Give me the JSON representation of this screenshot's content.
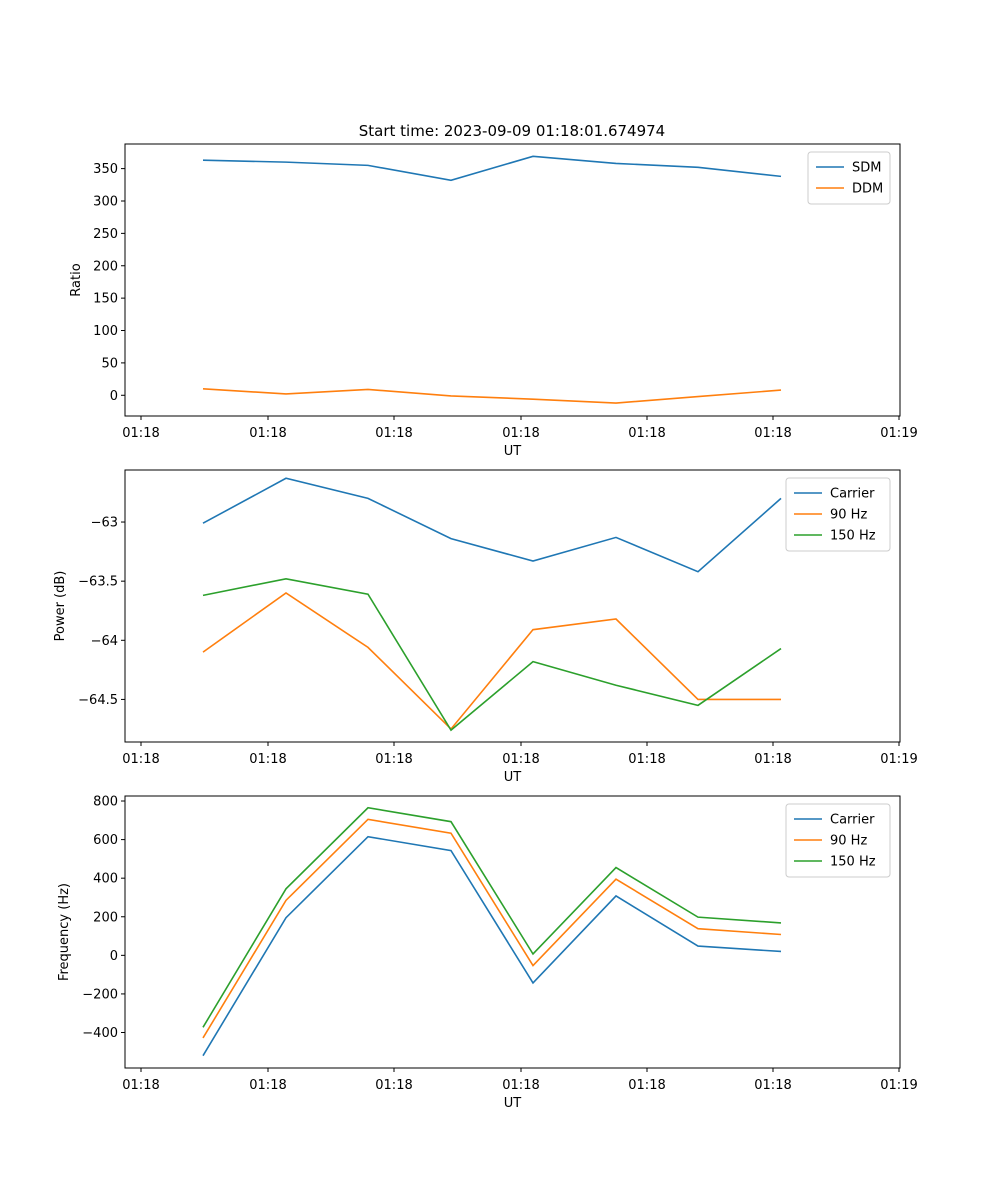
{
  "title": "Start time: 2023-09-09 01:18:01.674974",
  "colors": {
    "blue": "#1f77b4",
    "orange": "#ff7f0e",
    "green": "#2ca02c"
  },
  "chart_data": [
    {
      "type": "line",
      "xlabel": "UT",
      "ylabel": "Ratio",
      "xticks": [
        "01:18",
        "01:18",
        "01:18",
        "01:18",
        "01:18",
        "01:18",
        "01:19"
      ],
      "yticks": [
        0,
        50,
        100,
        150,
        200,
        250,
        300,
        350
      ],
      "ylim": [
        -32,
        388
      ],
      "x": [
        1,
        2,
        3,
        4,
        5,
        6,
        7,
        8
      ],
      "series": [
        {
          "name": "SDM",
          "color": "#1f77b4",
          "values": [
            363,
            360,
            355,
            332,
            369,
            358,
            352,
            338
          ]
        },
        {
          "name": "DDM",
          "color": "#ff7f0e",
          "values": [
            10,
            2,
            9,
            -1,
            -6,
            -12,
            -2,
            8
          ]
        }
      ]
    },
    {
      "type": "line",
      "xlabel": "UT",
      "ylabel": "Power (dB)",
      "xticks": [
        "01:18",
        "01:18",
        "01:18",
        "01:18",
        "01:18",
        "01:18",
        "01:19"
      ],
      "yticks": [
        -63.0,
        -63.5,
        -64.0,
        -64.5
      ],
      "ylim": [
        -64.86,
        -62.56
      ],
      "x": [
        1,
        2,
        3,
        4,
        5,
        6,
        7,
        8
      ],
      "series": [
        {
          "name": "Carrier",
          "color": "#1f77b4",
          "values": [
            -63.01,
            -62.63,
            -62.8,
            -63.14,
            -63.33,
            -63.13,
            -63.42,
            -62.8
          ]
        },
        {
          "name": "90 Hz",
          "color": "#ff7f0e",
          "values": [
            -64.1,
            -63.6,
            -64.06,
            -64.75,
            -63.91,
            -63.82,
            -64.5,
            -64.5
          ]
        },
        {
          "name": "150 Hz",
          "color": "#2ca02c",
          "values": [
            -63.62,
            -63.48,
            -63.61,
            -64.76,
            -64.18,
            -64.38,
            -64.55,
            -64.07
          ]
        }
      ]
    },
    {
      "type": "line",
      "xlabel": "UT",
      "ylabel": "Frequency (Hz)",
      "xticks": [
        "01:18",
        "01:18",
        "01:18",
        "01:18",
        "01:18",
        "01:18",
        "01:19"
      ],
      "yticks": [
        -400,
        -200,
        0,
        200,
        400,
        600,
        800
      ],
      "ylim": [
        -584,
        826
      ],
      "x": [
        1,
        2,
        3,
        4,
        5,
        6,
        7,
        8
      ],
      "series": [
        {
          "name": "Carrier",
          "color": "#1f77b4",
          "values": [
            -520,
            195,
            615,
            543,
            -143,
            308,
            48,
            20
          ]
        },
        {
          "name": "90 Hz",
          "color": "#ff7f0e",
          "values": [
            -428,
            285,
            705,
            633,
            -53,
            395,
            138,
            108
          ]
        },
        {
          "name": "150 Hz",
          "color": "#2ca02c",
          "values": [
            -373,
            345,
            765,
            693,
            7,
            455,
            198,
            168
          ]
        }
      ]
    }
  ]
}
